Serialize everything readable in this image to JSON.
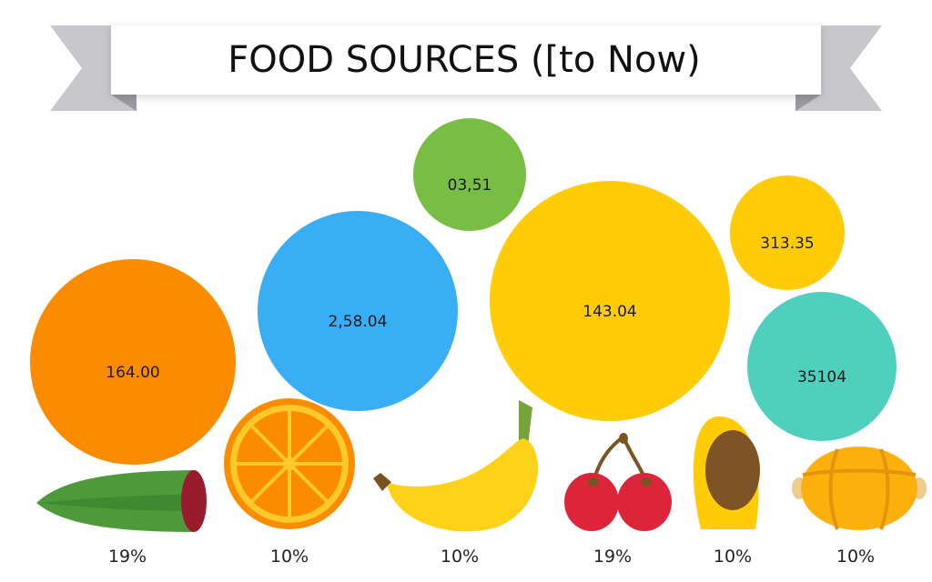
{
  "chart_data": {
    "type": "bubble",
    "title": "FOOD SOURCES ([to Now)",
    "bubbles": [
      {
        "label": "164.00",
        "color": "#FB8C00",
        "size": 113
      },
      {
        "label": "2,58.04",
        "color": "#39AEF5",
        "size": 110
      },
      {
        "label": "03,51",
        "color": "#78BE45",
        "size": 62
      },
      {
        "label": "143.04",
        "color": "#FFCC07",
        "size": 132
      },
      {
        "label": "313.35",
        "color": "#FFCC07",
        "size": 63
      },
      {
        "label": "35104",
        "color": "#4FCFBD",
        "size": 82
      }
    ],
    "categories": [
      {
        "icon": "cucumber-icon",
        "percent": "19%"
      },
      {
        "icon": "orange-slice-icon",
        "percent": "10%"
      },
      {
        "icon": "banana-icon",
        "percent": "10%"
      },
      {
        "icon": "cherries-icon",
        "percent": "19%"
      },
      {
        "icon": "apricot-icon",
        "percent": "10%"
      },
      {
        "icon": "melon-icon",
        "percent": "10%"
      }
    ]
  }
}
